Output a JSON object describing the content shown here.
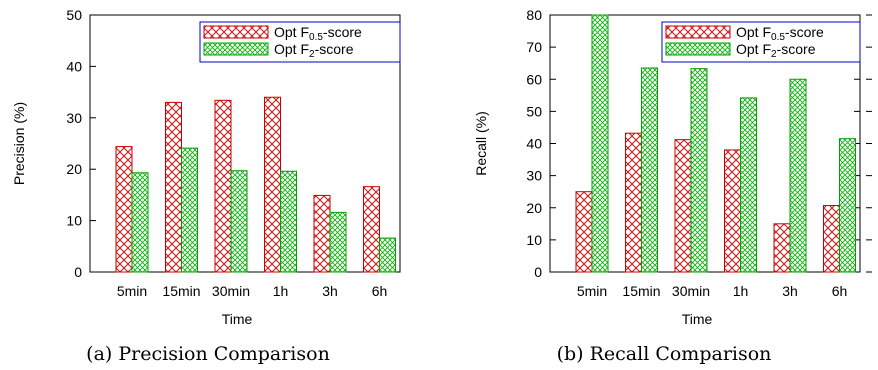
{
  "colors": {
    "series_a_stroke": "#cc0000",
    "series_a_hatch": "#d01010",
    "series_b_stroke": "#00a000",
    "series_b_hatch": "#10b010",
    "legend_border": "#0000cc"
  },
  "chart_data": [
    {
      "type": "bar",
      "caption": "(a) Precision Comparison",
      "xlabel": "Time",
      "ylabel": "Precision (%)",
      "ylim": [
        0,
        50
      ],
      "yticks": [
        0,
        10,
        20,
        30,
        40,
        50
      ],
      "categories": [
        "5min",
        "15min",
        "30min",
        "1h",
        "3h",
        "6h"
      ],
      "legend_position": "top-right",
      "series": [
        {
          "name_main": "Opt F",
          "name_sub": "0.5",
          "name_tail": "-score",
          "values": [
            24.4,
            33.0,
            33.4,
            34.0,
            14.9,
            16.6
          ]
        },
        {
          "name_main": "Opt F",
          "name_sub": "2",
          "name_tail": "-score",
          "values": [
            19.3,
            24.1,
            19.7,
            19.6,
            11.6,
            6.6
          ]
        }
      ]
    },
    {
      "type": "bar",
      "caption": "(b) Recall Comparison",
      "xlabel": "Time",
      "ylabel": "Recall (%)",
      "ylim": [
        0,
        80
      ],
      "yticks": [
        0,
        10,
        20,
        30,
        40,
        50,
        60,
        70,
        80
      ],
      "categories": [
        "5min",
        "15min",
        "30min",
        "1h",
        "3h",
        "6h"
      ],
      "legend_position": "top-right",
      "series": [
        {
          "name_main": "Opt F",
          "name_sub": "0.5",
          "name_tail": "-score",
          "values": [
            25.0,
            43.2,
            41.2,
            38.0,
            15.0,
            20.7
          ]
        },
        {
          "name_main": "Opt F",
          "name_sub": "2",
          "name_tail": "-score",
          "values": [
            80.0,
            63.5,
            63.3,
            54.2,
            60.0,
            41.5
          ]
        }
      ]
    }
  ]
}
